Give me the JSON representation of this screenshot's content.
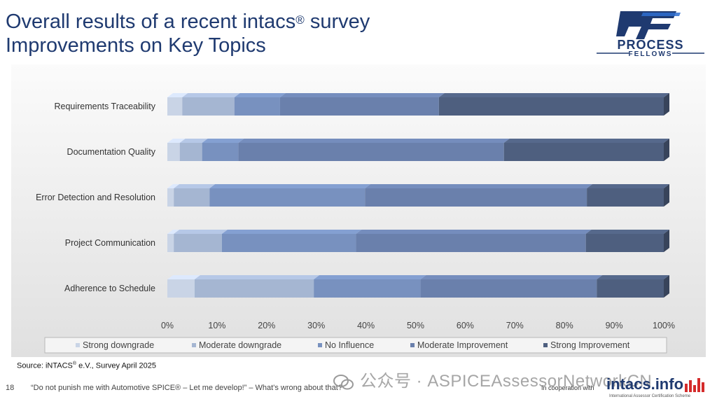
{
  "header": {
    "title_line1": "Overall results of a recent intacs",
    "title_reg": "®",
    "title_line1_end": " survey",
    "title_line2": "Improvements on Key Topics"
  },
  "logo": {
    "line1": "PROCESS",
    "line2": "FELLOWS",
    "brand_color": "#1f3a70",
    "accent_color": "#2f6fcf"
  },
  "chart_data": {
    "type": "bar",
    "orientation": "horizontal",
    "stacked": true,
    "percent": true,
    "categories": [
      "Requirements Traceability",
      "Documentation Quality",
      "Error Detection and Resolution",
      "Project Communication",
      "Adherence to Schedule"
    ],
    "series": [
      {
        "name": "Strong downgrade",
        "color": "#c9d4e6",
        "values": [
          3,
          2.5,
          1.3,
          1.3,
          5.5
        ]
      },
      {
        "name": "Moderate downgrade",
        "color": "#a5b6d2",
        "values": [
          10.5,
          4.5,
          7.2,
          9.7,
          24
        ]
      },
      {
        "name": "No Influence",
        "color": "#7891bf",
        "values": [
          9.2,
          7.3,
          31.3,
          27,
          21.5
        ]
      },
      {
        "name": "Moderate Improvement",
        "color": "#6a80ac",
        "values": [
          32,
          53.5,
          44.7,
          46.3,
          35.5
        ]
      },
      {
        "name": "Strong Improvement",
        "color": "#4e5f7f",
        "values": [
          45.3,
          32.2,
          15.5,
          15.7,
          13.5
        ]
      }
    ],
    "xlim": [
      0,
      100
    ],
    "xticks": [
      "0%",
      "10%",
      "20%",
      "30%",
      "40%",
      "50%",
      "60%",
      "70%",
      "80%",
      "90%",
      "100%"
    ],
    "legend_position": "bottom",
    "grid": false
  },
  "source": {
    "prefix": "Source: iNTACS",
    "reg": "®",
    "suffix": " e.V., Survey April 2025"
  },
  "footer": {
    "page_number": "18",
    "quote": "“Do not punish me with Automotive SPICE® – Let me develop!” – What's wrong about that?",
    "cooperation": "In cooperation with",
    "intacs_brand": "intacs.info",
    "intacs_sub": "International Assessor Certification Scheme"
  },
  "watermark": {
    "text": "公众号 · ASPICEAssessorNetworkCN"
  }
}
